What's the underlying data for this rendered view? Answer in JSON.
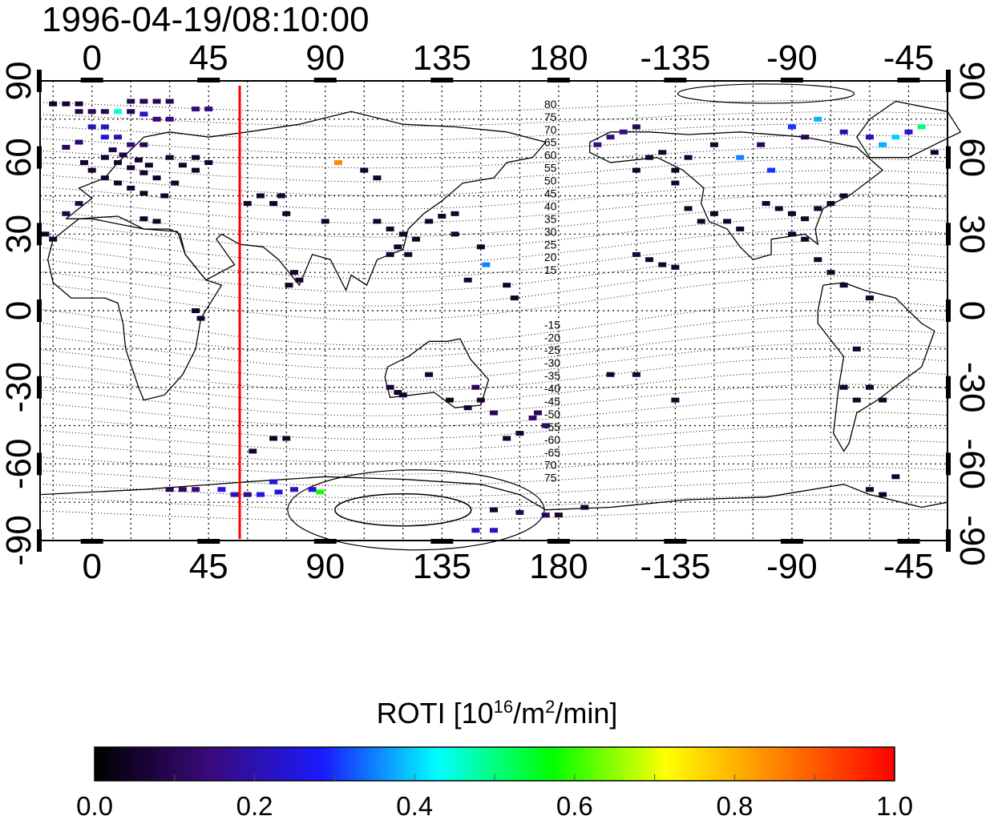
{
  "title": "1996-04-19/08:10:00",
  "colorbar": {
    "label_main": "ROTI  [10",
    "label_sup1": "16",
    "label_mid": "/m",
    "label_sup2": "2",
    "label_end": "/min]",
    "ticks": [
      "0.0",
      "0.2",
      "0.4",
      "0.6",
      "0.8",
      "1.0"
    ],
    "range": [
      0.0,
      1.0
    ],
    "colors": [
      "#000000",
      "#3a0a7a",
      "#1a1aff",
      "#00ffff",
      "#00ff00",
      "#ffff00",
      "#ff8000",
      "#ff0000"
    ]
  },
  "map": {
    "x_ticks": [
      "0",
      "45",
      "90",
      "135",
      "180",
      "-135",
      "-90",
      "-45"
    ],
    "y_ticks_left": [
      "90",
      "60",
      "30",
      "0",
      "-30",
      "-60",
      "-90"
    ],
    "y_ticks_right": [
      "90",
      "60",
      "30",
      "0",
      "-30",
      "-60",
      "-90"
    ],
    "lon_range": [
      -20,
      330
    ],
    "lat_range": [
      -90,
      90
    ],
    "terminator_lon": 57,
    "terminator_color": "#ff0000",
    "mlat_labels_north": [
      "80",
      "75",
      "70",
      "65",
      "60",
      "55",
      "50",
      "45",
      "40",
      "35",
      "30",
      "25",
      "20",
      "15"
    ],
    "mlat_labels_south": [
      "-15",
      "-20",
      "-25",
      "-30",
      "-35",
      "-40",
      "-45",
      "-50",
      "-55",
      "-60",
      "-65",
      "70",
      "75"
    ]
  },
  "chart_data": {
    "type": "scatter",
    "xlabel": "",
    "ylabel": "",
    "xlim": [
      -20,
      330
    ],
    "ylim": [
      -90,
      90
    ],
    "grid": true,
    "value_name": "ROTI",
    "points": [
      [
        -15,
        81,
        0.05
      ],
      [
        -10,
        81,
        0.05
      ],
      [
        -5,
        81,
        0.05
      ],
      [
        -5,
        78,
        0.08
      ],
      [
        0,
        78,
        0.1
      ],
      [
        5,
        78,
        0.1
      ],
      [
        10,
        78,
        0.45
      ],
      [
        15,
        78,
        0.1
      ],
      [
        20,
        77,
        0.22
      ],
      [
        15,
        82,
        0.1
      ],
      [
        20,
        82,
        0.1
      ],
      [
        25,
        82,
        0.1
      ],
      [
        30,
        82,
        0.1
      ],
      [
        40,
        79,
        0.15
      ],
      [
        45,
        79,
        0.15
      ],
      [
        30,
        75,
        0.15
      ],
      [
        25,
        75,
        0.15
      ],
      [
        0,
        72,
        0.22
      ],
      [
        5,
        72,
        0.22
      ],
      [
        -5,
        66,
        0.12
      ],
      [
        -10,
        64,
        0.1
      ],
      [
        5,
        68,
        0.25
      ],
      [
        10,
        68,
        0.2
      ],
      [
        15,
        65,
        0.15
      ],
      [
        20,
        65,
        0.1
      ],
      [
        5,
        60,
        0.05
      ],
      [
        10,
        58,
        0.05
      ],
      [
        15,
        56,
        0.05
      ],
      [
        20,
        54,
        0.05
      ],
      [
        25,
        52,
        0.05
      ],
      [
        0,
        55,
        0.05
      ],
      [
        5,
        52,
        0.05
      ],
      [
        10,
        50,
        0.05
      ],
      [
        15,
        48,
        0.05
      ],
      [
        20,
        46,
        0.05
      ],
      [
        -3,
        58,
        0.05
      ],
      [
        8,
        63,
        0.08
      ],
      [
        12,
        61,
        0.08
      ],
      [
        18,
        59,
        0.05
      ],
      [
        22,
        57,
        0.05
      ],
      [
        30,
        60,
        0.05
      ],
      [
        35,
        57,
        0.05
      ],
      [
        40,
        55,
        0.05
      ],
      [
        32,
        50,
        0.05
      ],
      [
        28,
        45,
        0.05
      ],
      [
        -5,
        42,
        0.08
      ],
      [
        -10,
        38,
        0.08
      ],
      [
        -15,
        28,
        0.05
      ],
      [
        -18,
        30,
        0.05
      ],
      [
        40,
        60,
        0.05
      ],
      [
        45,
        58,
        0.05
      ],
      [
        20,
        36,
        0.05
      ],
      [
        25,
        35,
        0.05
      ],
      [
        65,
        45,
        0.05
      ],
      [
        70,
        42,
        0.05
      ],
      [
        75,
        38,
        0.05
      ],
      [
        73,
        45,
        0.05
      ],
      [
        60,
        42,
        0.05
      ],
      [
        95,
        58,
        0.85
      ],
      [
        105,
        55,
        0.05
      ],
      [
        110,
        52,
        0.05
      ],
      [
        90,
        35,
        0.05
      ],
      [
        110,
        35,
        0.05
      ],
      [
        115,
        32,
        0.05
      ],
      [
        120,
        30,
        0.05
      ],
      [
        125,
        28,
        0.05
      ],
      [
        130,
        35,
        0.05
      ],
      [
        135,
        37,
        0.05
      ],
      [
        140,
        38,
        0.05
      ],
      [
        140,
        30,
        0.05
      ],
      [
        118,
        25,
        0.05
      ],
      [
        122,
        22,
        0.05
      ],
      [
        115,
        22,
        0.05
      ],
      [
        152,
        18,
        0.35
      ],
      [
        150,
        25,
        0.05
      ],
      [
        78,
        15,
        0.05
      ],
      [
        80,
        12,
        0.05
      ],
      [
        76,
        10,
        0.05
      ],
      [
        145,
        12,
        0.05
      ],
      [
        160,
        10,
        0.05
      ],
      [
        163,
        5,
        0.05
      ],
      [
        40,
        0,
        0.05
      ],
      [
        42,
        -3,
        0.05
      ],
      [
        115,
        -30,
        0.05
      ],
      [
        118,
        -32,
        0.05
      ],
      [
        120,
        -33,
        0.05
      ],
      [
        130,
        -25,
        0.05
      ],
      [
        138,
        -35,
        0.05
      ],
      [
        145,
        -38,
        0.05
      ],
      [
        150,
        -35,
        0.05
      ],
      [
        148,
        -30,
        0.1
      ],
      [
        155,
        -40,
        0.1
      ],
      [
        170,
        -42,
        0.12
      ],
      [
        175,
        -45,
        0.12
      ],
      [
        172,
        -40,
        0.1
      ],
      [
        165,
        -48,
        0.05
      ],
      [
        160,
        -50,
        0.05
      ],
      [
        62,
        -55,
        0.05
      ],
      [
        70,
        -50,
        0.05
      ],
      [
        75,
        -50,
        0.05
      ],
      [
        30,
        -70,
        0.1
      ],
      [
        35,
        -70,
        0.12
      ],
      [
        40,
        -70,
        0.15
      ],
      [
        50,
        -70,
        0.25
      ],
      [
        55,
        -72,
        0.2
      ],
      [
        60,
        -72,
        0.15
      ],
      [
        65,
        -72,
        0.25
      ],
      [
        70,
        -67,
        0.25
      ],
      [
        72,
        -71,
        0.25
      ],
      [
        78,
        -70,
        0.22
      ],
      [
        85,
        -70,
        0.25
      ],
      [
        88,
        -71,
        0.58
      ],
      [
        155,
        -78,
        0.05
      ],
      [
        165,
        -79,
        0.1
      ],
      [
        175,
        -80,
        0.1
      ],
      [
        180,
        -80,
        0.05
      ],
      [
        190,
        -77,
        0.05
      ],
      [
        148,
        -86,
        0.22
      ],
      [
        155,
        -86,
        0.22
      ],
      [
        200,
        -25,
        0.05
      ],
      [
        210,
        -25,
        0.05
      ],
      [
        225,
        -35,
        0.05
      ],
      [
        240,
        65,
        0.05
      ],
      [
        230,
        60,
        0.05
      ],
      [
        225,
        55,
        0.05
      ],
      [
        225,
        50,
        0.05
      ],
      [
        230,
        40,
        0.05
      ],
      [
        235,
        35,
        0.05
      ],
      [
        240,
        38,
        0.05
      ],
      [
        245,
        35,
        0.05
      ],
      [
        250,
        32,
        0.05
      ],
      [
        260,
        42,
        0.05
      ],
      [
        265,
        40,
        0.05
      ],
      [
        270,
        38,
        0.05
      ],
      [
        275,
        36,
        0.05
      ],
      [
        280,
        40,
        0.05
      ],
      [
        285,
        42,
        0.05
      ],
      [
        290,
        45,
        0.05
      ],
      [
        270,
        30,
        0.05
      ],
      [
        275,
        28,
        0.05
      ],
      [
        280,
        20,
        0.05
      ],
      [
        285,
        15,
        0.05
      ],
      [
        290,
        10,
        0.05
      ],
      [
        300,
        5,
        0.05
      ],
      [
        295,
        -15,
        0.05
      ],
      [
        290,
        -30,
        0.05
      ],
      [
        295,
        -35,
        0.05
      ],
      [
        300,
        -30,
        0.05
      ],
      [
        305,
        -35,
        0.05
      ],
      [
        310,
        -65,
        0.05
      ],
      [
        300,
        -70,
        0.05
      ],
      [
        305,
        -72,
        0.05
      ],
      [
        195,
        65,
        0.15
      ],
      [
        200,
        68,
        0.15
      ],
      [
        205,
        70,
        0.15
      ],
      [
        210,
        72,
        0.1
      ],
      [
        215,
        60,
        0.05
      ],
      [
        220,
        62,
        0.05
      ],
      [
        210,
        55,
        0.05
      ],
      [
        250,
        60,
        0.35
      ],
      [
        258,
        65,
        0.1
      ],
      [
        262,
        55,
        0.3
      ],
      [
        270,
        72,
        0.3
      ],
      [
        275,
        68,
        0.1
      ],
      [
        280,
        75,
        0.38
      ],
      [
        290,
        70,
        0.2
      ],
      [
        300,
        68,
        0.2
      ],
      [
        305,
        65,
        0.38
      ],
      [
        310,
        68,
        0.4
      ],
      [
        315,
        70,
        0.22
      ],
      [
        320,
        72,
        0.5
      ],
      [
        325,
        62,
        0.05
      ],
      [
        215,
        20,
        0.05
      ],
      [
        220,
        18,
        0.05
      ],
      [
        225,
        17,
        0.05
      ],
      [
        210,
        22,
        0.08
      ]
    ]
  }
}
